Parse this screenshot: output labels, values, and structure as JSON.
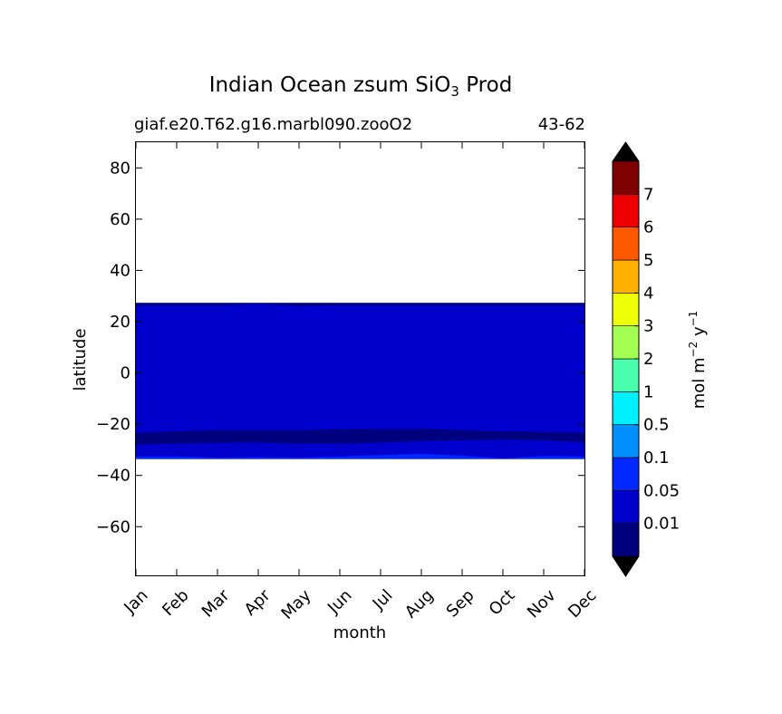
{
  "chart_data": {
    "type": "filled-contour",
    "title": {
      "prefix": "Indian Ocean zsum SiO",
      "subscript": "3",
      "suffix": " Prod"
    },
    "subtitle_left": "giaf.e20.T62.g16.marbl090.zooO2",
    "subtitle_right": "43-62",
    "xlabel": "month",
    "ylabel": "latitude",
    "x_categories": [
      "Jan",
      "Feb",
      "Mar",
      "Apr",
      "May",
      "Jun",
      "Jul",
      "Aug",
      "Sep",
      "Oct",
      "Nov",
      "Dec"
    ],
    "ylim": [
      -79,
      90
    ],
    "yticks": [
      "80",
      "60",
      "40",
      "20",
      "0",
      "−20",
      "−40",
      "−60"
    ],
    "ytick_values": [
      80,
      60,
      40,
      20,
      0,
      -20,
      -40,
      -60
    ],
    "grid": false,
    "colorbar": {
      "label": {
        "unit": "mol m",
        "exp1": "−2",
        "mid": " y",
        "exp2": "−1"
      },
      "levels": [
        "0.01",
        "0.05",
        "0.1",
        "0.5",
        "1",
        "2",
        "3",
        "4",
        "5",
        "6",
        "7"
      ],
      "colors": [
        "#00007f",
        "#0000cd",
        "#0028ff",
        "#0090ff",
        "#00f0ff",
        "#49ffad",
        "#a4ff53",
        "#efff08",
        "#ffb000",
        "#ff5900",
        "#ee0000",
        "#7f0000"
      ],
      "extend": "both",
      "under_color": "#000000",
      "over_color": "#000000"
    },
    "bands": [
      {
        "color": "#00007f",
        "edge": "top",
        "top": [
          27.3,
          27.3,
          27.3,
          27.3,
          27.3,
          27.3,
          27.3,
          27.3,
          27.3,
          27.3,
          27.3,
          27.3
        ],
        "bottom": [
          26.3,
          26.3,
          26.3,
          26.8,
          26.1,
          26.3,
          26.3,
          26.3,
          26.3,
          26.3,
          26.3,
          26.3
        ]
      },
      {
        "color": "#00007f",
        "edge": "middle",
        "top": [
          -23.3,
          -22.8,
          -22.3,
          -22.3,
          -22.3,
          -22.0,
          -21.8,
          -21.8,
          -22.3,
          -22.8,
          -23.0,
          -23.3
        ],
        "bottom": [
          -28.0,
          -27.6,
          -27.3,
          -27.2,
          -27.6,
          -27.6,
          -27.2,
          -26.6,
          -26.3,
          -26.1,
          -26.3,
          -27.0
        ]
      },
      {
        "color": "#0028ff",
        "edge": "bottom",
        "top": [
          -32.6,
          -32.6,
          -33.1,
          -32.9,
          -33.1,
          -32.6,
          -32.1,
          -31.6,
          -32.3,
          -33.4,
          -32.4,
          -32.6
        ],
        "bottom": [
          -33.6,
          -33.6,
          -33.6,
          -33.6,
          -33.6,
          -33.6,
          -33.6,
          -33.6,
          -33.6,
          -33.6,
          -33.6,
          -33.6
        ]
      }
    ],
    "filled_region": {
      "color": "#0000cd",
      "lat_top": 27.3,
      "lat_bottom": -33.6
    }
  }
}
